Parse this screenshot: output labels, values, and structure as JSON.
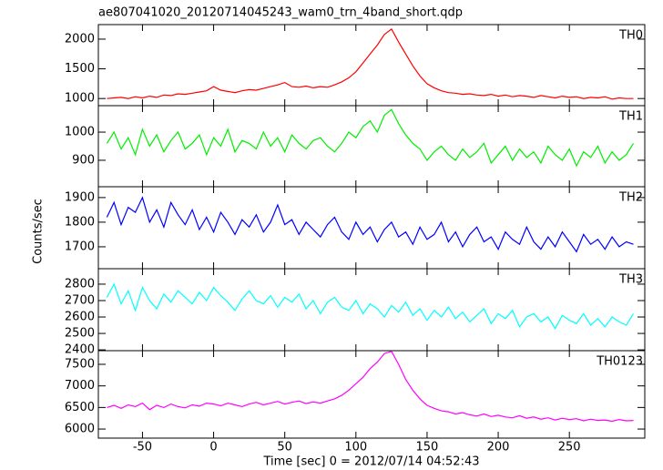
{
  "chart_data": {
    "type": "line",
    "title": "ae807041020_20120714045243_wam0_trn_4band_short.qdp",
    "xlabel": "Time [sec] 0 = 2012/07/14 04:52:43",
    "ylabel": "Counts/sec",
    "xlim": [
      -81,
      303
    ],
    "xticks": [
      -50,
      0,
      50,
      100,
      150,
      200,
      250
    ],
    "x": [
      -75,
      -70,
      -65,
      -60,
      -55,
      -50,
      -45,
      -40,
      -35,
      -30,
      -25,
      -20,
      -15,
      -10,
      -5,
      0,
      5,
      10,
      15,
      20,
      25,
      30,
      35,
      40,
      45,
      50,
      55,
      60,
      65,
      70,
      75,
      80,
      85,
      90,
      95,
      100,
      105,
      110,
      115,
      120,
      125,
      130,
      135,
      140,
      145,
      150,
      155,
      160,
      165,
      170,
      175,
      180,
      185,
      190,
      195,
      200,
      205,
      210,
      215,
      220,
      225,
      230,
      235,
      240,
      245,
      250,
      255,
      260,
      265,
      270,
      275,
      280,
      285,
      290,
      295
    ],
    "series": [
      {
        "name": "TH0",
        "color": "#ff0000",
        "ylim": [
          880,
          2245
        ],
        "yticks": [
          1000,
          1500,
          2000
        ],
        "values": [
          1000,
          1010,
          1020,
          1000,
          1030,
          1010,
          1040,
          1020,
          1060,
          1050,
          1080,
          1070,
          1090,
          1110,
          1130,
          1200,
          1140,
          1120,
          1100,
          1130,
          1150,
          1140,
          1170,
          1200,
          1230,
          1270,
          1200,
          1190,
          1210,
          1180,
          1200,
          1190,
          1230,
          1280,
          1350,
          1450,
          1600,
          1750,
          1900,
          2080,
          2170,
          1950,
          1750,
          1550,
          1380,
          1250,
          1180,
          1130,
          1100,
          1090,
          1070,
          1080,
          1060,
          1050,
          1070,
          1040,
          1060,
          1030,
          1050,
          1040,
          1020,
          1050,
          1030,
          1010,
          1040,
          1020,
          1030,
          1000,
          1020,
          1010,
          1030,
          990,
          1010,
          1000,
          1000
        ]
      },
      {
        "name": "TH1",
        "color": "#00ee00",
        "ylim": [
          806,
          1094
        ],
        "yticks": [
          900,
          1000
        ],
        "values": [
          960,
          1000,
          940,
          980,
          920,
          1010,
          950,
          990,
          930,
          970,
          1000,
          940,
          960,
          990,
          920,
          980,
          950,
          1010,
          930,
          970,
          960,
          940,
          1000,
          950,
          980,
          930,
          990,
          960,
          940,
          970,
          980,
          950,
          930,
          960,
          1000,
          980,
          1020,
          1040,
          1000,
          1060,
          1080,
          1030,
          990,
          960,
          940,
          900,
          930,
          950,
          920,
          900,
          940,
          910,
          930,
          960,
          890,
          920,
          950,
          900,
          940,
          910,
          930,
          890,
          950,
          920,
          900,
          940,
          880,
          930,
          910,
          950,
          890,
          930,
          900,
          920,
          960
        ]
      },
      {
        "name": "TH2",
        "color": "#0000ff",
        "ylim": [
          1611,
          1944
        ],
        "yticks": [
          1700,
          1800,
          1900
        ],
        "values": [
          1820,
          1880,
          1790,
          1860,
          1840,
          1900,
          1800,
          1850,
          1780,
          1880,
          1830,
          1790,
          1850,
          1770,
          1820,
          1760,
          1840,
          1800,
          1750,
          1810,
          1780,
          1830,
          1760,
          1800,
          1870,
          1790,
          1810,
          1750,
          1800,
          1770,
          1740,
          1790,
          1820,
          1760,
          1730,
          1800,
          1750,
          1780,
          1720,
          1770,
          1800,
          1740,
          1760,
          1710,
          1780,
          1730,
          1750,
          1800,
          1720,
          1760,
          1700,
          1750,
          1780,
          1720,
          1740,
          1690,
          1760,
          1730,
          1710,
          1780,
          1720,
          1690,
          1740,
          1700,
          1760,
          1720,
          1680,
          1750,
          1710,
          1730,
          1690,
          1740,
          1700,
          1720,
          1710
        ]
      },
      {
        "name": "TH3",
        "color": "#00ffff",
        "ylim": [
          2395,
          2894
        ],
        "yticks": [
          2400,
          2500,
          2600,
          2700,
          2800
        ],
        "values": [
          2720,
          2800,
          2680,
          2760,
          2640,
          2780,
          2700,
          2650,
          2740,
          2690,
          2760,
          2720,
          2680,
          2750,
          2700,
          2780,
          2730,
          2690,
          2640,
          2710,
          2760,
          2700,
          2680,
          2730,
          2660,
          2720,
          2690,
          2740,
          2650,
          2700,
          2620,
          2690,
          2720,
          2660,
          2640,
          2700,
          2620,
          2680,
          2650,
          2600,
          2670,
          2630,
          2690,
          2610,
          2650,
          2580,
          2640,
          2600,
          2660,
          2590,
          2630,
          2570,
          2610,
          2650,
          2560,
          2620,
          2590,
          2640,
          2540,
          2600,
          2620,
          2570,
          2600,
          2530,
          2610,
          2580,
          2560,
          2620,
          2550,
          2590,
          2540,
          2600,
          2570,
          2550,
          2620
        ]
      },
      {
        "name": "TH0123",
        "color": "#ff00ff",
        "ylim": [
          5790,
          7816
        ],
        "yticks": [
          6000,
          6500,
          7000,
          7500
        ],
        "values": [
          6500,
          6550,
          6480,
          6560,
          6520,
          6600,
          6450,
          6550,
          6500,
          6580,
          6520,
          6490,
          6560,
          6530,
          6600,
          6580,
          6540,
          6600,
          6560,
          6520,
          6580,
          6620,
          6560,
          6600,
          6640,
          6580,
          6620,
          6650,
          6590,
          6630,
          6600,
          6650,
          6700,
          6780,
          6900,
          7050,
          7200,
          7400,
          7550,
          7750,
          7800,
          7500,
          7150,
          6900,
          6700,
          6550,
          6480,
          6420,
          6400,
          6350,
          6380,
          6330,
          6300,
          6350,
          6290,
          6320,
          6280,
          6260,
          6310,
          6250,
          6280,
          6230,
          6260,
          6210,
          6250,
          6220,
          6240,
          6190,
          6230,
          6200,
          6210,
          6180,
          6220,
          6190,
          6200
        ]
      }
    ]
  }
}
